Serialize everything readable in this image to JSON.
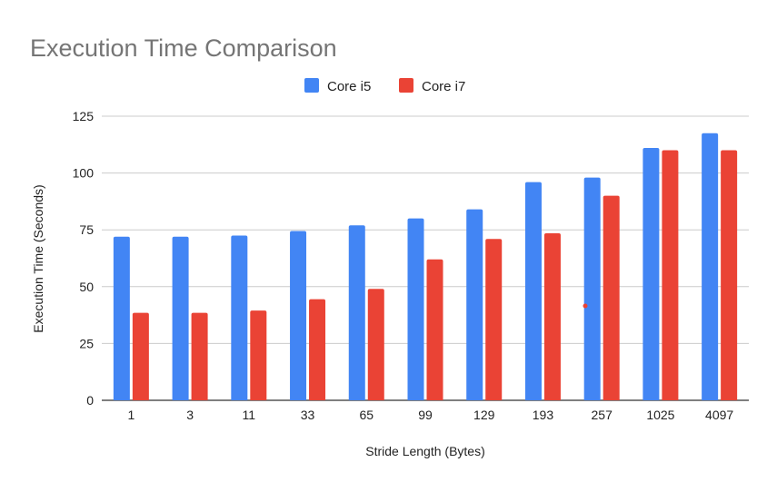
{
  "chart_data": {
    "type": "bar",
    "title": "Execution Time Comparison",
    "xlabel": "Stride Length (Bytes)",
    "ylabel": "Execution Time (Seconds)",
    "categories": [
      "1",
      "3",
      "11",
      "33",
      "65",
      "99",
      "129",
      "193",
      "257",
      "1025",
      "4097"
    ],
    "series": [
      {
        "name": "Core i5",
        "color": "#4285F4",
        "values": [
          72,
          72,
          72.5,
          74.5,
          77,
          80,
          84,
          96,
          98,
          111,
          117.5
        ]
      },
      {
        "name": "Core i7",
        "color": "#EA4335",
        "values": [
          38.5,
          38.5,
          39.5,
          44.5,
          49,
          62,
          71,
          73.5,
          90,
          110,
          110
        ]
      }
    ],
    "ylim": [
      0,
      125
    ],
    "yticks": [
      0,
      25,
      50,
      75,
      100,
      125
    ],
    "grid": true,
    "legend_position": "top-center"
  }
}
